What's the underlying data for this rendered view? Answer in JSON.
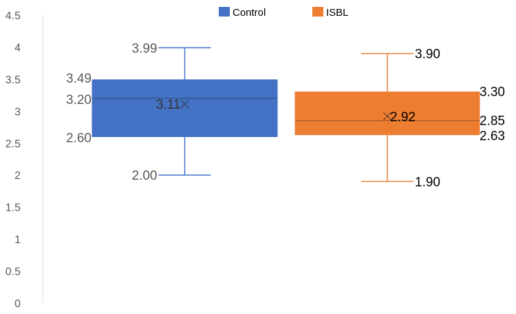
{
  "chart_data": {
    "type": "box",
    "title": "",
    "xlabel": "",
    "ylabel": "",
    "ylim": [
      0,
      4.5
    ],
    "y_ticks": [
      0,
      0.5,
      1,
      1.5,
      2,
      2.5,
      3,
      3.5,
      4,
      4.5
    ],
    "grid": false,
    "legend_position": "top",
    "series": [
      {
        "name": "Control",
        "color": "#4472C4",
        "min": 2.0,
        "q1": 2.6,
        "median": 3.2,
        "q3": 3.49,
        "max": 3.99,
        "mean": 3.11,
        "labels": {
          "min": "2.00",
          "q1": "2.60",
          "median": "3.20",
          "q3": "3.49",
          "max": "3.99",
          "mean": "3.11"
        }
      },
      {
        "name": "ISBL",
        "color": "#ED7D31",
        "min": 1.9,
        "q1": 2.63,
        "median": 2.85,
        "q3": 3.3,
        "max": 3.9,
        "mean": 2.92,
        "labels": {
          "min": "1.90",
          "q1": "2.63",
          "median": "2.85",
          "q3": "3.30",
          "max": "3.90",
          "mean": "2.92"
        }
      }
    ]
  }
}
